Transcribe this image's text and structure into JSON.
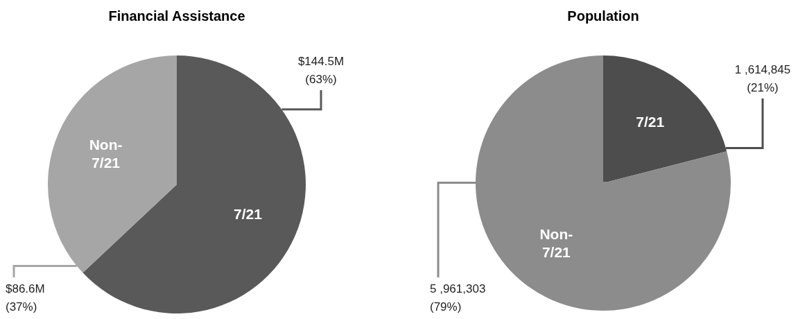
{
  "chart_data": [
    {
      "type": "pie",
      "title": "Financial Assistance",
      "categories": [
        "7/21",
        "Non-7/21"
      ],
      "values": [
        63,
        37
      ],
      "colors": [
        "#595959",
        "#a6a6a6"
      ],
      "value_labels": [
        "$144.5M\n(63%)",
        "$86.6M\n(37%)"
      ]
    },
    {
      "type": "pie",
      "title": "Population",
      "categories": [
        "7/21",
        "Non-7/21"
      ],
      "values": [
        21,
        79
      ],
      "colors": [
        "#4d4d4d",
        "#8c8c8c"
      ],
      "value_labels": [
        "1 ,614,845\n(21%)",
        "5 ,961,303\n(79%)"
      ]
    }
  ]
}
